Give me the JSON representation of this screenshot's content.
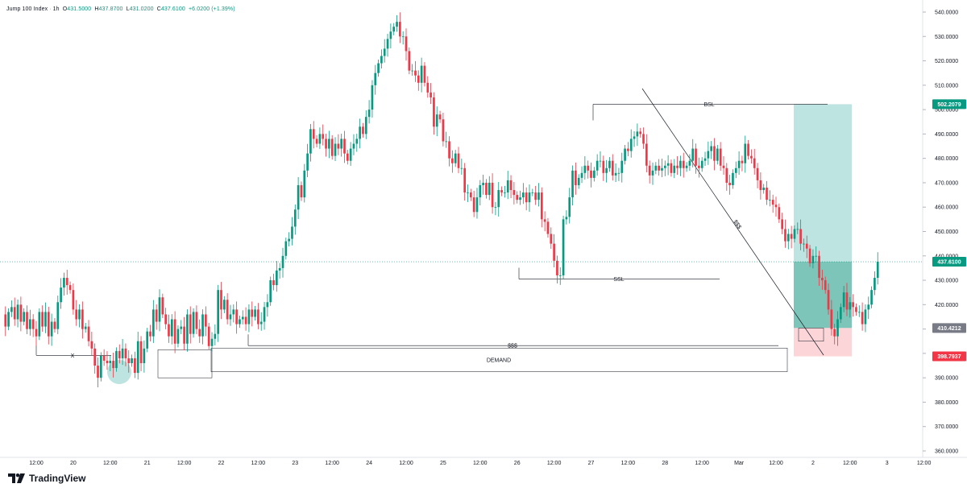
{
  "header": {
    "symbol": "Jump 100 Index",
    "interval": "1h",
    "o_label": "O",
    "o": "431.5000",
    "h_label": "H",
    "h": "437.8700",
    "l_label": "L",
    "l": "431.0200",
    "c_label": "C",
    "c": "437.6100",
    "change": "+6.0200 (+1.39%)"
  },
  "branding": {
    "name": "TradingView"
  },
  "colors": {
    "up": "#089981",
    "down": "#f23645",
    "profit_zone": "#b2dfdb",
    "profit_zone_dark": "#63b7a8",
    "loss_zone": "#fbd5d8",
    "price_line": "#089981",
    "entry_label": "#787b86",
    "stop_label": "#f23645"
  },
  "chart_data": {
    "type": "candlestick",
    "title": "Jump 100 Index",
    "interval": "1h",
    "y_axis": {
      "min": 360,
      "max": 540,
      "side": "right",
      "ticks": [
        "540.0000",
        "530.0000",
        "520.0000",
        "510.0000",
        "500.0000",
        "490.0000",
        "480.0000",
        "470.0000",
        "460.0000",
        "450.0000",
        "440.0000",
        "430.0000",
        "420.0000",
        "410.0000",
        "400.0000",
        "390.0000",
        "380.0000",
        "370.0000",
        "360.0000"
      ]
    },
    "x_axis": {
      "ticks": [
        "12:00",
        "20",
        "12:00",
        "21",
        "12:00",
        "22",
        "12:00",
        "23",
        "12:00",
        "24",
        "12:00",
        "25",
        "12:00",
        "26",
        "12:00",
        "27",
        "12:00",
        "28",
        "12:00",
        "Mar",
        "12:00",
        "2",
        "12:00",
        "3",
        "12:00"
      ],
      "first_tick_hours_from_start": 14,
      "hours_per_tick": 12
    },
    "grid": false,
    "candles_start_value": 433.5,
    "candle_closes": [
      433.5,
      428,
      420,
      416,
      411,
      417,
      419,
      414,
      420,
      413,
      417,
      410,
      414,
      410,
      407,
      417,
      411,
      417,
      407,
      413,
      410,
      421,
      427,
      431,
      428,
      426,
      418,
      414,
      418,
      410,
      411,
      405,
      402,
      395,
      390,
      399,
      397,
      396,
      397,
      394,
      401,
      398,
      402,
      398,
      396,
      398,
      392,
      405,
      396,
      402,
      409,
      407,
      418,
      413,
      423,
      416,
      412,
      407,
      414,
      404,
      410,
      411,
      404,
      416,
      408,
      417,
      410,
      407,
      416,
      411,
      403,
      406,
      408,
      426,
      418,
      422,
      414,
      416,
      418,
      412,
      414,
      415,
      412,
      418,
      415,
      418,
      412,
      413,
      419,
      421,
      430,
      428,
      434,
      435,
      440,
      446,
      447,
      452,
      459,
      469,
      464,
      475,
      482,
      492,
      488,
      486,
      490,
      488,
      484,
      488,
      481,
      486,
      484,
      488,
      482,
      479,
      484,
      486,
      488,
      493,
      490,
      497,
      500,
      510,
      515,
      519,
      522,
      525,
      529,
      532,
      534,
      536,
      530,
      530,
      524,
      516,
      516,
      514,
      511,
      518,
      511,
      507,
      505,
      493,
      498,
      496,
      487,
      487,
      480,
      478,
      482,
      476,
      476,
      466,
      466,
      464,
      458,
      464,
      469,
      470,
      465,
      470,
      460,
      460,
      467,
      466,
      466,
      471,
      467,
      465,
      463,
      464,
      466,
      462,
      466,
      466,
      463,
      466,
      455,
      454,
      449,
      445,
      438,
      432,
      432,
      455,
      456,
      464,
      475,
      469,
      472,
      474,
      477,
      475,
      472,
      475,
      479,
      479,
      474,
      476,
      479,
      473,
      474,
      474,
      479,
      484,
      483,
      488,
      489,
      491,
      490,
      486,
      477,
      473,
      475,
      477,
      475,
      476,
      477,
      478,
      474,
      477,
      476,
      479,
      476,
      477,
      479,
      484,
      477,
      476,
      479,
      480,
      483,
      485,
      479,
      484,
      477,
      476,
      470,
      469,
      474,
      476,
      479,
      478,
      486,
      481,
      480,
      476,
      471,
      467,
      468,
      463,
      463,
      461,
      460,
      455,
      451,
      446,
      449,
      447,
      451,
      451,
      445,
      445,
      443,
      437,
      440,
      440,
      431,
      430,
      426,
      418,
      410,
      407,
      414,
      419,
      425,
      418,
      421,
      419,
      417,
      417,
      412,
      418,
      420,
      426,
      431,
      437.61
    ],
    "annotations": {
      "bsl_label": "BSL",
      "ssl_label": "SSL",
      "sss_label": "$$$",
      "trendline_label": "$$$",
      "demand_label": "DEMAND",
      "x_label": "X",
      "bsl_price": 502.2,
      "ssl_price": 430.5,
      "sss_price": 403.2,
      "x_level": 399.2,
      "demand_zone": [
        392.5,
        402.2
      ],
      "demand_zone_2": [
        390,
        401.5
      ]
    },
    "position": {
      "type": "long",
      "entry": 410.4212,
      "target": 502.2079,
      "stop": 398.7937,
      "current": 437.61
    },
    "price_labels": {
      "target": "502.2079",
      "current": "437.6100",
      "entry": "410.4212",
      "stop": "398.7937"
    }
  }
}
